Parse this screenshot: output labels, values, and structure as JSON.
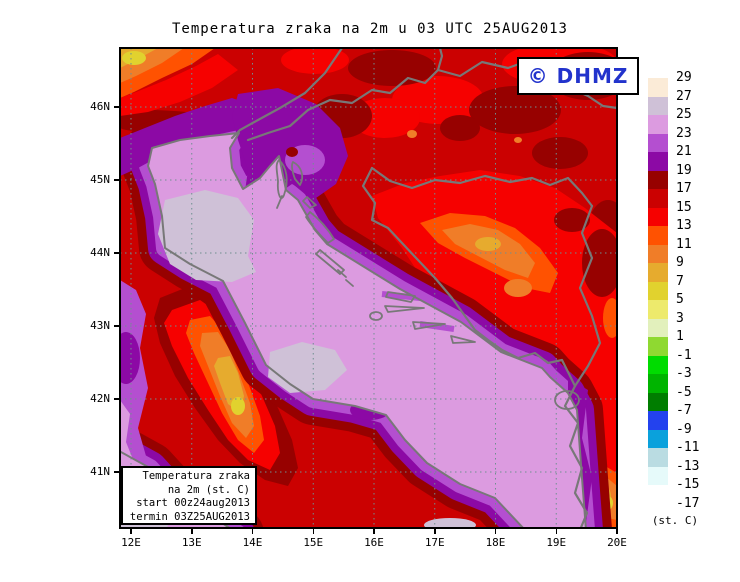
{
  "title": "Temperatura zraka na 2m u 03 UTC 25AUG2013",
  "watermark": {
    "label": "© DHMZ"
  },
  "info_box": {
    "line1": "Temperatura zraka",
    "line2": "na 2m (st. C)",
    "line3": "start 00z24aug2013",
    "line4": "termin 03Z25AUG2013"
  },
  "axes": {
    "x_tick_labels": [
      "12E",
      "13E",
      "14E",
      "15E",
      "16E",
      "17E",
      "18E",
      "19E",
      "20E"
    ],
    "y_tick_labels": [
      "46N",
      "45N",
      "44N",
      "43N",
      "42N",
      "41N"
    ]
  },
  "legend": {
    "unit_label": "(st. C)",
    "boundary_labels": [
      "29",
      "27",
      "25",
      "23",
      "21",
      "19",
      "17",
      "15",
      "13",
      "11",
      "9",
      "7",
      "5",
      "3",
      "1",
      "-1",
      "-3",
      "-5",
      "-7",
      "-9",
      "-11",
      "-13",
      "-15",
      "-17"
    ],
    "band_colors": [
      "#FBEBD7",
      "#CFC1D7",
      "#DC9BE0",
      "#B44FD0",
      "#8C09A5",
      "#970100",
      "#CB0101",
      "#F60100",
      "#FF5201",
      "#F07D28",
      "#E6AB2E",
      "#E1D22E",
      "#EDEA6C",
      "#E2F0BC",
      "#8FD931",
      "#00DC00",
      "#00B400",
      "#007D00",
      "#2342EE",
      "#0AA1DC",
      "#BADCE2",
      "#E6FAFA",
      "#FFFFFF"
    ]
  }
}
